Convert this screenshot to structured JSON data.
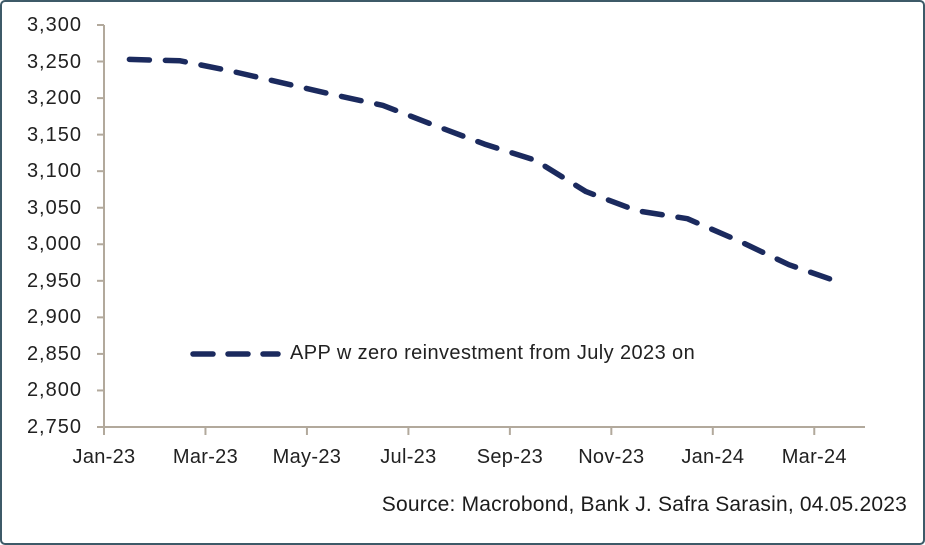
{
  "chart_data": {
    "type": "line",
    "title": "",
    "xlabel": "",
    "ylabel": "",
    "categories": [
      "Jan-23",
      "Feb-23",
      "Mar-23",
      "Apr-23",
      "May-23",
      "Jun-23",
      "Jul-23",
      "Aug-23",
      "Sep-23",
      "Oct-23",
      "Nov-23",
      "Dec-23",
      "Jan-24",
      "Feb-24",
      "Mar-24"
    ],
    "series": [
      {
        "name": "APP w zero reinvestment from July 2023 on",
        "values": [
          3253,
          3251,
          3237,
          3221,
          3205,
          3190,
          3163,
          3137,
          3115,
          3072,
          3046,
          3035,
          3005,
          2972,
          2948
        ],
        "color": "#1b2a5e",
        "line_style": "dashed"
      }
    ],
    "x_tick_labels": [
      "Jan-23",
      "Mar-23",
      "May-23",
      "Jul-23",
      "Sep-23",
      "Nov-23",
      "Jan-24",
      "Mar-24"
    ],
    "y_ticks": [
      3300,
      3250,
      3200,
      3150,
      3100,
      3050,
      3000,
      2950,
      2900,
      2850,
      2800,
      2750
    ],
    "ylim": [
      2750,
      3300
    ],
    "grid": false,
    "legend_position": "inside-bottom-left",
    "colors": {
      "axis": "#b2a99c",
      "text": "#212121",
      "frame_border": "#3e5a68",
      "background": "#ffffff"
    }
  },
  "legend": {
    "label": "APP w zero reinvestment from July 2023 on"
  },
  "source_note": "Source: Macrobond, Bank J. Safra Sarasin, 04.05.2023"
}
